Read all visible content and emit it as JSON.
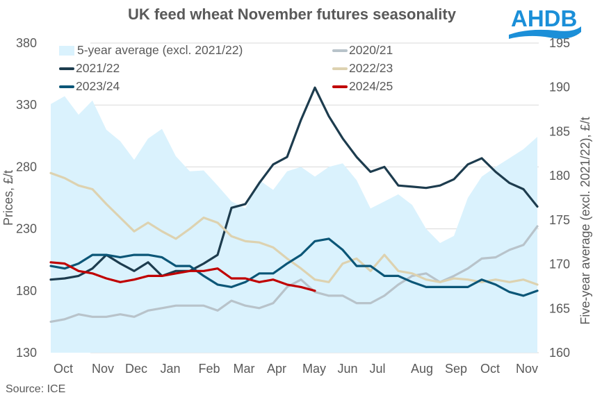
{
  "title": "UK feed wheat November futures seasonality",
  "source": "Source: ICE",
  "logo_text": "AHDB",
  "colors": {
    "logo": "#1B8FD8",
    "area": "#DAF2FD",
    "s2020": "#B8C3CA",
    "s2021": "#1D3C4E",
    "s2022": "#DDD2B0",
    "s2023": "#0B5677",
    "s2024": "#C00000",
    "grid": "#D9D9D9"
  },
  "chart_data": {
    "type": "line",
    "title": "UK feed wheat November futures seasonality",
    "ylabel": "Prices, £/t",
    "y2label": "Five-year average (excl. 2021/22), £/t",
    "ylim": [
      130,
      380
    ],
    "yticks": [
      130,
      180,
      230,
      280,
      330,
      380
    ],
    "y2lim": [
      160,
      195
    ],
    "y2ticks": [
      160,
      165,
      170,
      175,
      180,
      185,
      190,
      195
    ],
    "x_ticks": [
      "Oct",
      "Nov",
      "Dec",
      "Jan",
      "Feb",
      "Mar",
      "Apr",
      "May",
      "Jun",
      "Jul",
      "Aug",
      "Sep",
      "Oct",
      "Nov"
    ],
    "grid": "horizontal",
    "legend_position": "top-left",
    "area": {
      "name": "5-year average (excl. 2021/22)",
      "axis": "right",
      "values": [
        188.1,
        189.0,
        186.9,
        188.5,
        185.2,
        183.9,
        181.8,
        184.2,
        185.3,
        182.2,
        180.5,
        180.6,
        178.9,
        177.1,
        176.3,
        179.5,
        178.4,
        180.5,
        181.0,
        179.9,
        181.0,
        181.4,
        179.5,
        176.3,
        177.1,
        177.9,
        176.7,
        174.0,
        172.4,
        173.2,
        177.5,
        179.9,
        181.0,
        182.0,
        183.0,
        184.4
      ]
    },
    "series": [
      {
        "name": "2020/21",
        "color_key": "s2020",
        "values": [
          155,
          157,
          161,
          159,
          159,
          161,
          159,
          164,
          166,
          168,
          168,
          168,
          164,
          172,
          168,
          166,
          170,
          183,
          189,
          179,
          176,
          176,
          170,
          170,
          176,
          185,
          192,
          194,
          187,
          192,
          198,
          206,
          207,
          213,
          217,
          232
        ]
      },
      {
        "name": "2021/22",
        "color_key": "s2021",
        "values": [
          189,
          190,
          192,
          198,
          209,
          202,
          196,
          203,
          192,
          196,
          196,
          202,
          209,
          247,
          250,
          267,
          282,
          288,
          318,
          344,
          321,
          303,
          288,
          276,
          280,
          265,
          264,
          263,
          265,
          270,
          282,
          287,
          276,
          267,
          262,
          248
        ]
      },
      {
        "name": "2022/23",
        "color_key": "s2022",
        "values": [
          275,
          271,
          265,
          262,
          250,
          239,
          228,
          235,
          228,
          222,
          230,
          239,
          235,
          224,
          220,
          219,
          215,
          206,
          198,
          189,
          187,
          202,
          206,
          196,
          209,
          196,
          194,
          189,
          187,
          190,
          189,
          187,
          189,
          187,
          189,
          185
        ]
      },
      {
        "name": "2023/24",
        "color_key": "s2023",
        "values": [
          200,
          198,
          202,
          209,
          209,
          207,
          209,
          209,
          207,
          200,
          200,
          192,
          185,
          183,
          187,
          194,
          194,
          202,
          209,
          220,
          222,
          213,
          200,
          200,
          192,
          192,
          187,
          183,
          183,
          183,
          183,
          189,
          185,
          179,
          176,
          180
        ]
      },
      {
        "name": "2024/25",
        "color_key": "s2024",
        "values": [
          203,
          202,
          196,
          194,
          190,
          187,
          189,
          192,
          192,
          194,
          196,
          196,
          198,
          190,
          190,
          187,
          189,
          185,
          183,
          180
        ]
      }
    ]
  }
}
